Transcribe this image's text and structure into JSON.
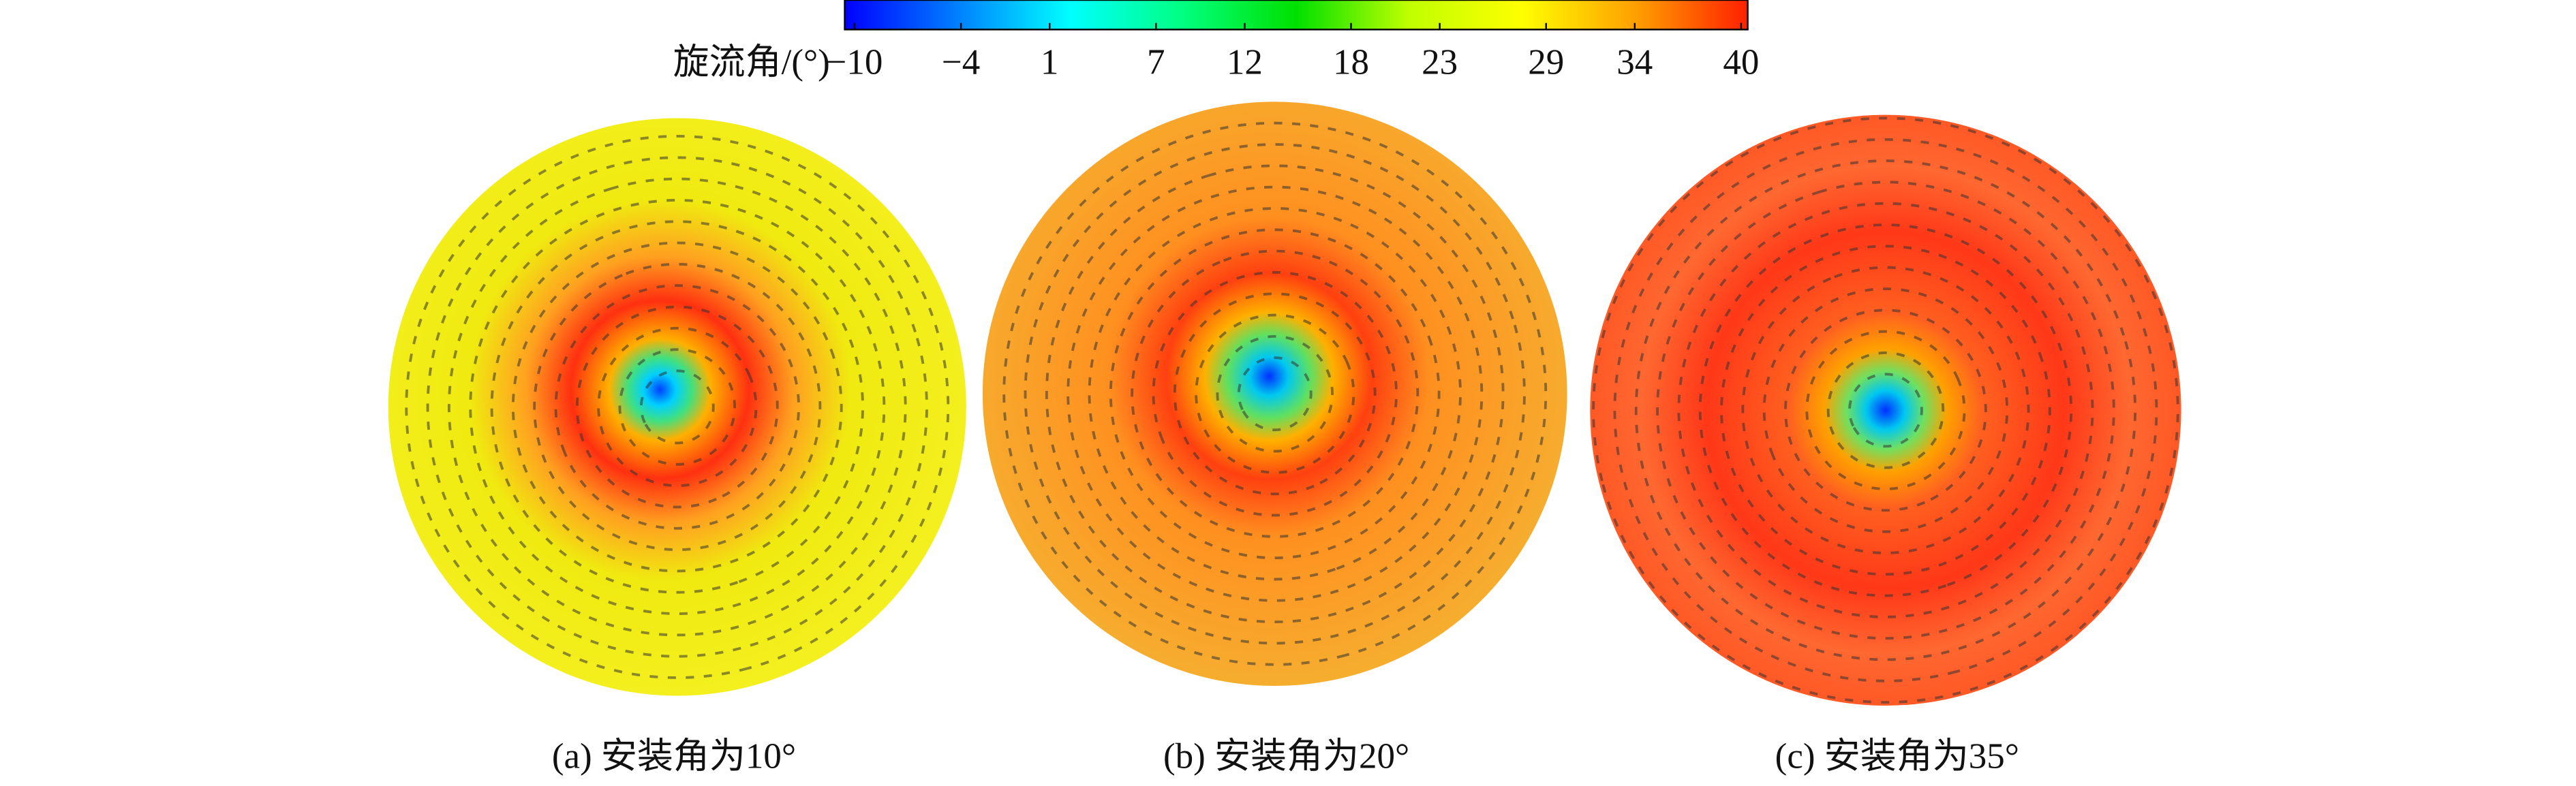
{
  "colorbar": {
    "label": "旋流角/(°)",
    "lim": [
      -10,
      40
    ],
    "ticks": [
      {
        "value": -10,
        "label": "−10"
      },
      {
        "value": -4,
        "label": "−4"
      },
      1,
      7,
      12,
      18,
      23,
      29,
      34,
      40
    ],
    "colors": [
      "#0000ff",
      "#0080ff",
      "#00ffff",
      "#00ff80",
      "#00e000",
      "#c0ff00",
      "#ffff00",
      "#ffa000",
      "#ff2000"
    ]
  },
  "panels": [
    {
      "caption": "(a) 安装角为10°"
    },
    {
      "caption": "(b) 安装角为20°"
    },
    {
      "caption": "(c) 安装角为35°"
    }
  ]
}
